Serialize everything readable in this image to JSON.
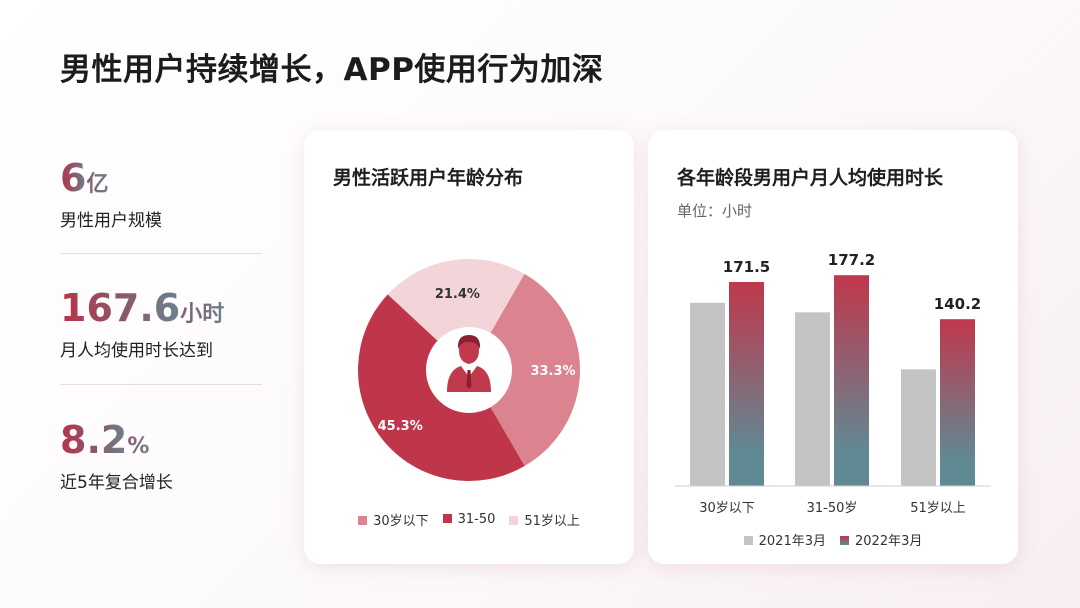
{
  "page": {
    "title": "男性用户持续增长，APP使用行为加深"
  },
  "kpis": [
    {
      "value": "6",
      "unit": "亿",
      "label": "男性用户规模"
    },
    {
      "value": "167.6",
      "unit": "小时",
      "label": "月人均使用时长达到"
    },
    {
      "value": "8.2",
      "unit": "%",
      "label": "近5年复合增长"
    }
  ],
  "colors": {
    "pie": [
      "#dc8390",
      "#bf364b",
      "#f2d4d9"
    ],
    "bar2021": "#c4c4c4",
    "bar2022_top": "#c0374c",
    "bar2022_bottom": "#5f8a94"
  },
  "icons": {
    "pie_center": "businessman-icon"
  },
  "chart_data": [
    {
      "type": "pie",
      "title": "男性活跃用户年龄分布",
      "categories": [
        "30岁以下",
        "31-50",
        "51岁以上"
      ],
      "values": [
        33.3,
        45.3,
        21.4
      ],
      "labels": [
        "33.3%",
        "45.3%",
        "21.4%"
      ],
      "legend": "bottom",
      "donut": true
    },
    {
      "type": "bar",
      "title": "各年龄段男用户月人均使用时长",
      "subtitle": "单位：小时",
      "categories": [
        "30岁以下",
        "31-50岁",
        "51岁以上"
      ],
      "series": [
        {
          "name": "2021年3月",
          "values": [
            154.0,
            146.0,
            98.0
          ]
        },
        {
          "name": "2022年3月",
          "values": [
            171.5,
            177.2,
            140.2
          ],
          "labels": [
            "171.5",
            "177.2",
            "140.2"
          ]
        }
      ],
      "ylim": [
        0,
        190
      ],
      "grid": false,
      "legend": "bottom"
    }
  ]
}
